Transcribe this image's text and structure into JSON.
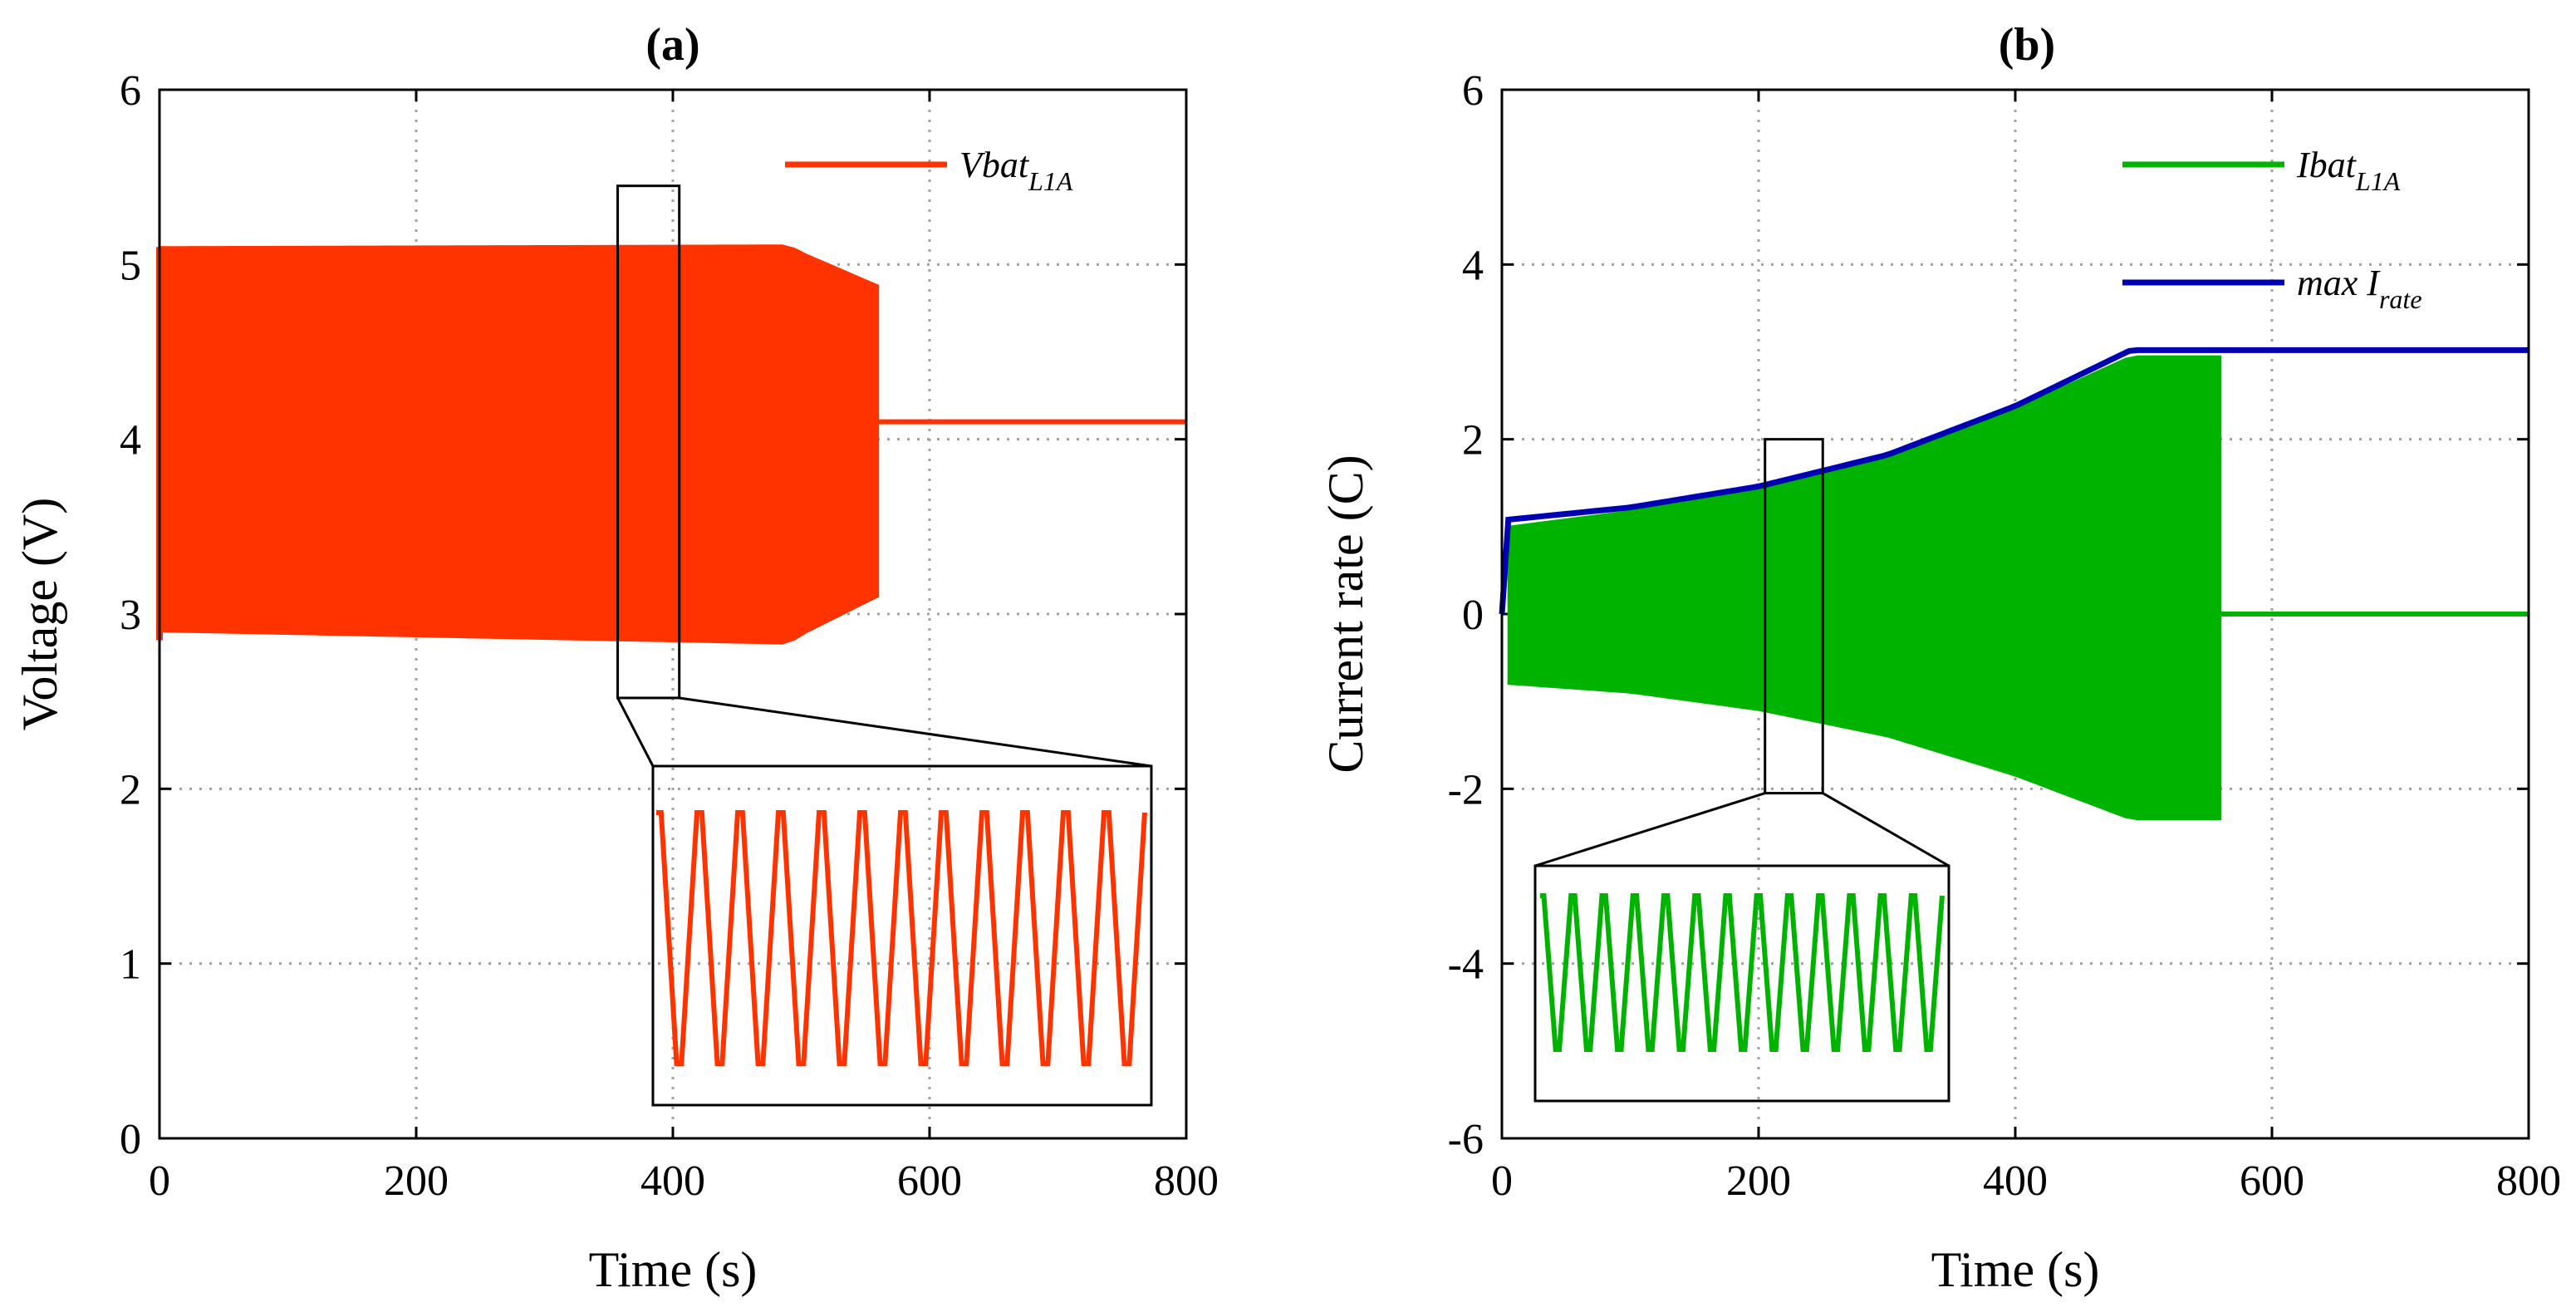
{
  "colors": {
    "voltage": "#ff3300",
    "current": "#00b300",
    "max_rate": "#0000b3"
  },
  "chart_data": [
    {
      "type": "line",
      "title": "(a)",
      "xlabel": "Time (s)",
      "ylabel": "Voltage (V)",
      "xlim": [
        0,
        800
      ],
      "ylim": [
        0,
        6
      ],
      "xticks": [
        "0",
        "200",
        "400",
        "600",
        "800"
      ],
      "yticks": [
        "0",
        "1",
        "2",
        "3",
        "4",
        "5",
        "6"
      ],
      "grid": true,
      "legend_position": "top-right",
      "series": [
        {
          "name": "Vbat",
          "subscript": "L1A",
          "style": "oscillation-band",
          "band_upper": {
            "x": [
              0,
              490,
              500,
              560
            ],
            "y": [
              5.1,
              5.11,
              5.07,
              4.88
            ]
          },
          "band_lower": {
            "x": [
              0,
              490,
              500,
              560
            ],
            "y": [
              2.9,
              2.83,
              2.88,
              3.1
            ]
          },
          "steady": {
            "x": [
              560,
              800
            ],
            "y": [
              4.1,
              4.1
            ]
          }
        }
      ],
      "zoom": {
        "source_x": [
          357,
          405
        ],
        "source_y": [
          2.52,
          5.45
        ],
        "oscillation_low": 3.0,
        "oscillation_high": 5.1,
        "cycles": 12
      }
    },
    {
      "type": "line",
      "title": "(b)",
      "xlabel": "Time (s)",
      "ylabel": "Current rate (C)",
      "xlim": [
        0,
        800
      ],
      "ylim": [
        -6,
        6
      ],
      "xticks": [
        "0",
        "200",
        "400",
        "600",
        "800"
      ],
      "yticks": [
        "-6",
        "-4",
        "-2",
        "0",
        "2",
        "4",
        "6"
      ],
      "grid": true,
      "legend_position": "top-right",
      "series": [
        {
          "name": "Ibat",
          "subscript": "L1A",
          "style": "oscillation-band",
          "band_upper": {
            "x": [
              5,
              100,
              200,
              300,
              400,
              490,
              560
            ],
            "y": [
              1.0,
              1.18,
              1.42,
              1.78,
              2.35,
              2.95,
              2.95
            ]
          },
          "band_lower": {
            "x": [
              5,
              100,
              200,
              300,
              400,
              490,
              560
            ],
            "y": [
              -0.8,
              -0.9,
              -1.1,
              -1.4,
              -1.85,
              -2.35,
              -2.35
            ]
          },
          "steady": {
            "x": [
              560,
              800
            ],
            "y": [
              0.0,
              0.0
            ]
          }
        },
        {
          "name": "max I",
          "subscript": "rate",
          "style": "line",
          "x": [
            0,
            5,
            100,
            200,
            300,
            400,
            490,
            800
          ],
          "y": [
            0.0,
            1.08,
            1.22,
            1.46,
            1.82,
            2.38,
            3.02,
            3.02
          ]
        }
      ],
      "zoom": {
        "source_x": [
          205,
          250
        ],
        "source_y": [
          -2.05,
          2.0
        ],
        "oscillation_low": -0.5,
        "oscillation_high": 1.1,
        "cycles": 13
      }
    }
  ]
}
